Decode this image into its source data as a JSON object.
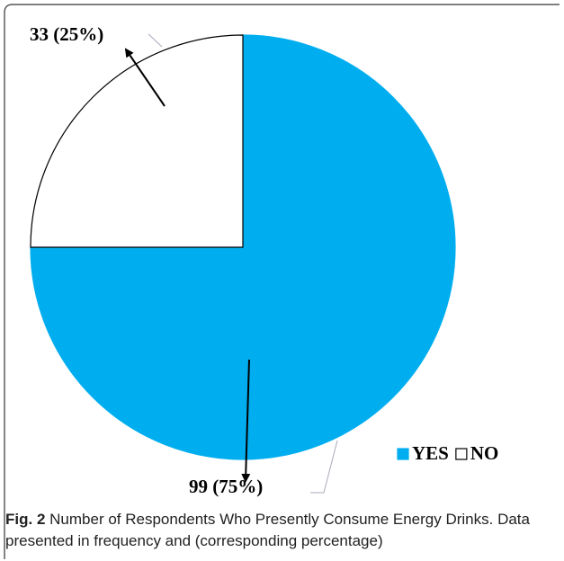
{
  "chart_data": {
    "type": "pie",
    "categories": [
      "YES",
      "NO"
    ],
    "values": [
      99,
      33
    ],
    "value_labels": [
      "99 (75%)",
      "33 (25%)"
    ],
    "colors": [
      "#00aeef",
      "#ffffff"
    ],
    "legend": "bottom-right"
  },
  "caption": {
    "label": "Fig. 2",
    "text": "Number of Respondents Who Presently Consume Energy Drinks. Data presented in frequency and (corresponding percentage)"
  }
}
